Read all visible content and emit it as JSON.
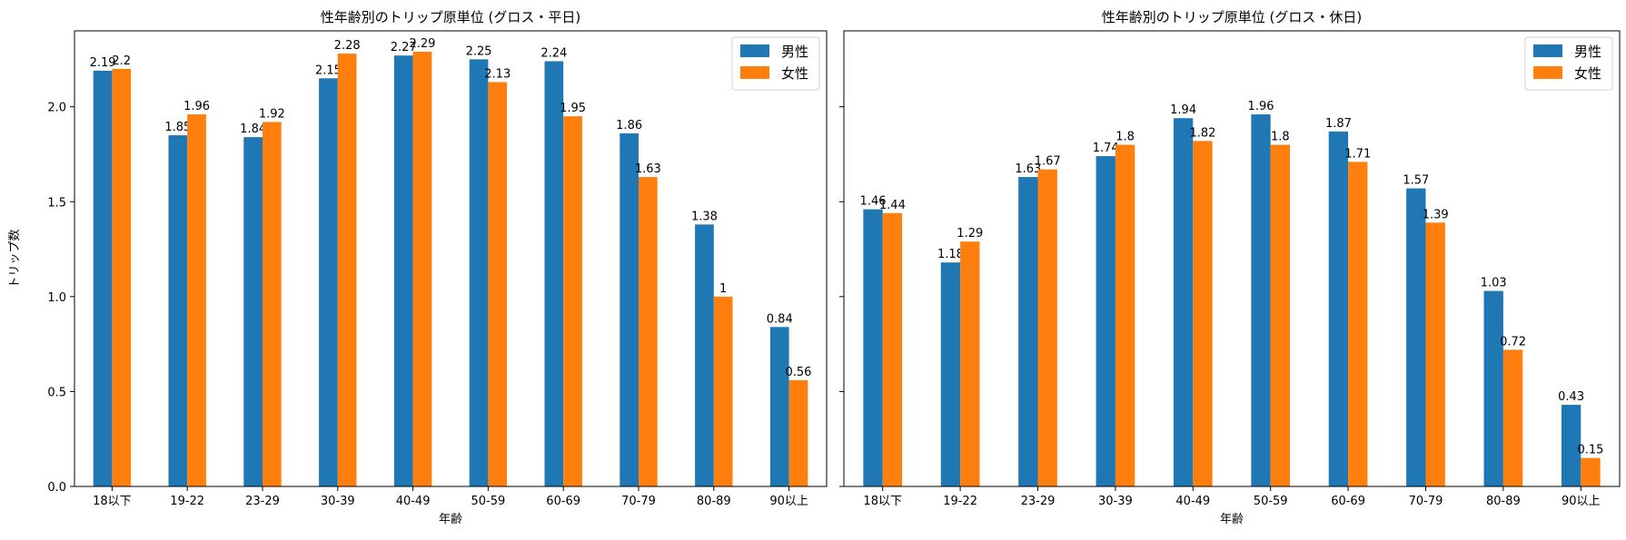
{
  "chart_data": [
    {
      "type": "bar",
      "title": "性年齢別のトリップ原単位 (グロス・平日)",
      "xlabel": "年齢",
      "ylabel": "トリップ数",
      "categories": [
        "18以下",
        "19-22",
        "23-29",
        "30-39",
        "40-49",
        "50-59",
        "60-69",
        "70-79",
        "80-89",
        "90以上"
      ],
      "series": [
        {
          "name": "男性",
          "color": "#1f77b4",
          "values": [
            2.19,
            1.85,
            1.84,
            2.15,
            2.27,
            2.25,
            2.24,
            1.86,
            1.38,
            0.84
          ]
        },
        {
          "name": "女性",
          "color": "#ff7f0e",
          "values": [
            2.2,
            1.96,
            1.92,
            2.28,
            2.29,
            2.13,
            1.95,
            1.63,
            1.0,
            0.56
          ]
        }
      ],
      "ylim": [
        0,
        2.4
      ],
      "yticks": [
        "0.0",
        "0.5",
        "1.0",
        "1.5",
        "2.0"
      ],
      "legend": "top-right",
      "grid": false
    },
    {
      "type": "bar",
      "title": "性年齢別のトリップ原単位 (グロス・休日)",
      "xlabel": "年齢",
      "ylabel": "",
      "categories": [
        "18以下",
        "19-22",
        "23-29",
        "30-39",
        "40-49",
        "50-59",
        "60-69",
        "70-79",
        "80-89",
        "90以上"
      ],
      "series": [
        {
          "name": "男性",
          "color": "#1f77b4",
          "values": [
            1.46,
            1.18,
            1.63,
            1.74,
            1.94,
            1.96,
            1.87,
            1.57,
            1.03,
            0.43
          ]
        },
        {
          "name": "女性",
          "color": "#ff7f0e",
          "values": [
            1.44,
            1.29,
            1.67,
            1.8,
            1.82,
            1.8,
            1.71,
            1.39,
            0.72,
            0.15
          ]
        }
      ],
      "ylim": [
        0,
        2.4
      ],
      "yticks": [
        "",
        "",
        "",
        "",
        ""
      ],
      "legend": "top-right",
      "grid": false
    }
  ]
}
